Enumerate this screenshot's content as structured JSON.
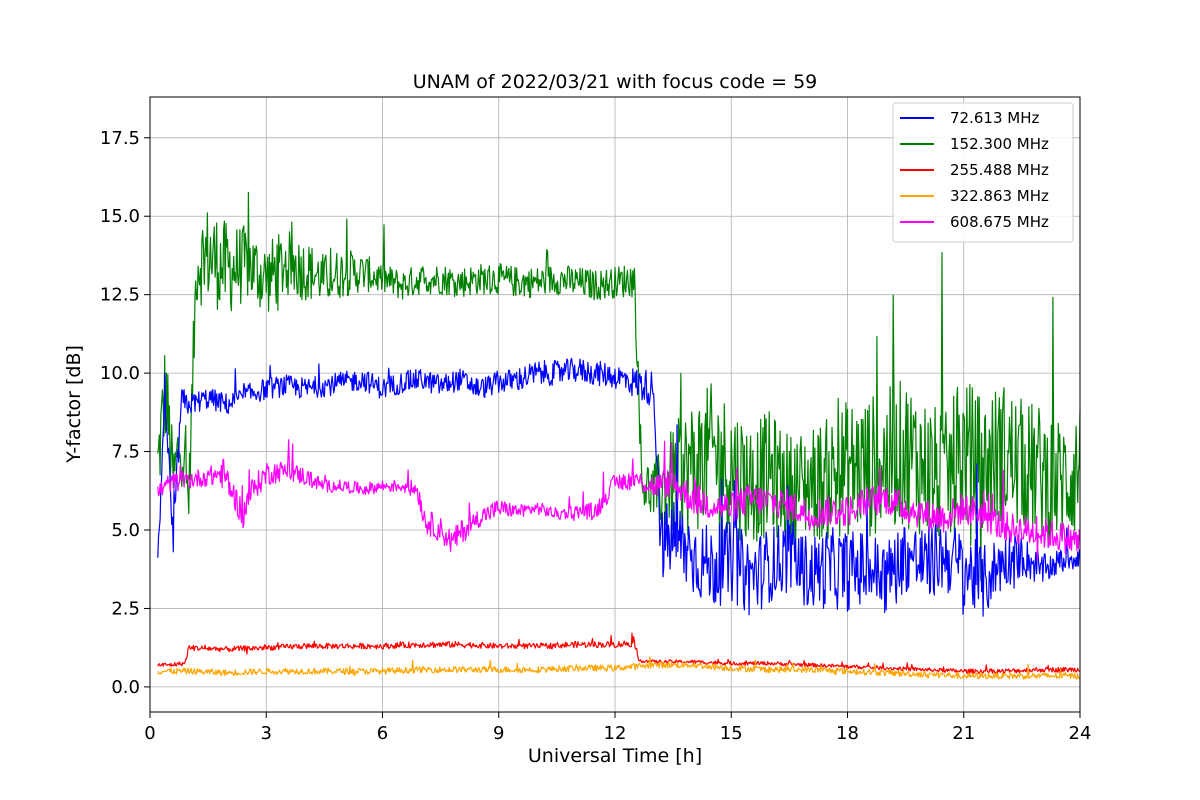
{
  "chart_data": {
    "type": "line",
    "title": "UNAM of 2022/03/21 with focus code = 59",
    "xlabel": "Universal Time [h]",
    "ylabel": "Y-factor [dB]",
    "xlim": [
      0,
      24
    ],
    "ylim": [
      -0.8,
      18.8
    ],
    "x_ticks": [
      0,
      3,
      6,
      9,
      12,
      15,
      18,
      21,
      24
    ],
    "x_tick_labels": [
      "0",
      "3",
      "6",
      "9",
      "12",
      "15",
      "18",
      "21",
      "24"
    ],
    "y_ticks": [
      0.0,
      2.5,
      5.0,
      7.5,
      10.0,
      12.5,
      15.0,
      17.5
    ],
    "y_tick_labels": [
      "0.0",
      "2.5",
      "5.0",
      "7.5",
      "10.0",
      "12.5",
      "15.0",
      "17.5"
    ],
    "grid": true,
    "legend_position": "top-right",
    "series": [
      {
        "name": " 72.613 MHz",
        "color": "#0000ff",
        "x": [
          0.2,
          0.4,
          0.6,
          0.8,
          1.0,
          1.5,
          2.0,
          2.5,
          3.0,
          3.5,
          4.0,
          4.5,
          5.0,
          5.5,
          6.0,
          6.5,
          7.0,
          7.5,
          8.0,
          8.5,
          9.0,
          9.5,
          10.0,
          10.5,
          11.0,
          11.5,
          12.0,
          12.5,
          13.0,
          13.2,
          13.5,
          14.0,
          14.5,
          15.0,
          15.5,
          16.0,
          16.5,
          17.0,
          17.5,
          18.0,
          18.5,
          19.0,
          19.5,
          20.0,
          20.5,
          21.0,
          21.5,
          22.0,
          22.5,
          23.0,
          23.5,
          24.0
        ],
        "y": [
          4.3,
          9.0,
          4.5,
          9.0,
          9.0,
          9.2,
          9.0,
          9.3,
          9.5,
          9.6,
          9.5,
          9.6,
          9.7,
          9.8,
          9.5,
          9.7,
          9.8,
          9.6,
          9.8,
          9.5,
          9.7,
          9.8,
          10.0,
          10.0,
          10.1,
          10.0,
          9.9,
          9.7,
          9.5,
          4.5,
          4.8,
          4.2,
          3.8,
          4.0,
          3.5,
          3.9,
          4.2,
          3.6,
          3.8,
          3.7,
          3.8,
          3.5,
          4.2,
          3.9,
          4.2,
          3.8,
          3.3,
          4.0,
          4.2,
          3.7,
          4.0,
          4.2
        ],
        "spread": [
          0.35,
          0.6,
          0.6,
          0.6,
          0.35,
          0.35,
          0.35,
          0.35,
          0.35,
          0.35,
          0.35,
          0.35,
          0.35,
          0.35,
          0.35,
          0.35,
          0.35,
          0.35,
          0.35,
          0.35,
          0.35,
          0.4,
          0.4,
          0.4,
          0.4,
          0.4,
          0.4,
          0.5,
          0.6,
          1.2,
          1.3,
          1.3,
          1.3,
          1.3,
          1.3,
          1.2,
          1.2,
          1.2,
          1.3,
          1.3,
          1.2,
          1.2,
          1.2,
          1.2,
          1.2,
          1.2,
          1.2,
          0.9,
          0.7,
          0.5,
          0.4,
          0.4
        ]
      },
      {
        "name": "152.300 MHz",
        "color": "#008000",
        "x": [
          0.2,
          0.4,
          0.6,
          0.8,
          1.0,
          1.2,
          1.5,
          2.0,
          2.5,
          3.0,
          3.5,
          4.0,
          4.5,
          5.0,
          5.5,
          6.0,
          6.5,
          7.0,
          7.5,
          8.0,
          8.5,
          9.0,
          9.5,
          10.0,
          10.5,
          11.0,
          11.5,
          12.0,
          12.5,
          12.7,
          13.0,
          13.5,
          14.0,
          14.5,
          15.0,
          15.5,
          16.0,
          16.5,
          17.0,
          17.5,
          18.0,
          18.5,
          19.0,
          19.5,
          20.0,
          20.5,
          21.0,
          21.5,
          22.0,
          22.5,
          23.0,
          23.5,
          24.0
        ],
        "y": [
          7.0,
          9.5,
          6.5,
          8.0,
          6.0,
          13.5,
          13.8,
          13.3,
          13.5,
          13.0,
          13.5,
          13.3,
          13.0,
          13.2,
          13.2,
          13.0,
          12.8,
          13.0,
          13.0,
          12.9,
          13.0,
          13.0,
          12.9,
          12.9,
          13.0,
          12.9,
          12.8,
          12.9,
          13.0,
          6.5,
          6.2,
          6.5,
          7.0,
          7.5,
          7.0,
          6.5,
          6.8,
          6.3,
          6.5,
          6.6,
          7.0,
          7.0,
          7.2,
          7.5,
          7.0,
          6.5,
          7.5,
          7.0,
          7.5,
          7.0,
          6.8,
          6.5,
          7.0
        ],
        "spread": [
          1.4,
          1.8,
          1.2,
          1.5,
          0.8,
          1.4,
          1.6,
          1.5,
          1.2,
          1.2,
          1.1,
          1.0,
          0.8,
          0.8,
          0.6,
          0.5,
          0.5,
          0.5,
          0.5,
          0.5,
          0.5,
          0.5,
          0.5,
          0.5,
          0.5,
          0.5,
          0.5,
          0.5,
          0.6,
          0.8,
          1.0,
          1.8,
          2.2,
          2.2,
          2.2,
          2.0,
          2.0,
          1.8,
          1.8,
          2.0,
          2.2,
          2.3,
          2.3,
          2.4,
          2.3,
          2.2,
          2.4,
          2.3,
          2.3,
          2.2,
          2.2,
          2.1,
          2.2
        ]
      },
      {
        "name": "255.488 MHz",
        "color": "#ff0000",
        "x": [
          0.2,
          0.5,
          0.9,
          1.0,
          2.0,
          3.0,
          4.0,
          5.0,
          6.0,
          7.0,
          8.0,
          9.0,
          10.0,
          11.0,
          12.0,
          12.5,
          12.6,
          13.0,
          14.0,
          15.0,
          16.0,
          17.0,
          18.0,
          19.0,
          20.0,
          21.0,
          22.0,
          23.0,
          24.0
        ],
        "y": [
          0.7,
          0.7,
          0.75,
          1.25,
          1.2,
          1.25,
          1.3,
          1.3,
          1.3,
          1.35,
          1.35,
          1.3,
          1.3,
          1.35,
          1.35,
          1.4,
          0.85,
          0.8,
          0.8,
          0.75,
          0.75,
          0.7,
          0.65,
          0.6,
          0.55,
          0.5,
          0.5,
          0.55,
          0.55
        ],
        "spread": [
          0.07,
          0.07,
          0.07,
          0.09,
          0.09,
          0.09,
          0.09,
          0.09,
          0.09,
          0.1,
          0.1,
          0.09,
          0.09,
          0.1,
          0.1,
          0.12,
          0.06,
          0.06,
          0.06,
          0.06,
          0.06,
          0.06,
          0.06,
          0.06,
          0.06,
          0.07,
          0.08,
          0.08,
          0.08
        ]
      },
      {
        "name": "322.863 MHz",
        "color": "#ffa500",
        "x": [
          0.2,
          1.0,
          2.0,
          3.0,
          4.0,
          5.0,
          6.0,
          7.0,
          8.0,
          9.0,
          10.0,
          11.0,
          12.0,
          13.0,
          14.0,
          15.0,
          16.0,
          17.0,
          18.0,
          19.0,
          20.0,
          21.0,
          22.0,
          23.0,
          24.0
        ],
        "y": [
          0.5,
          0.5,
          0.45,
          0.5,
          0.5,
          0.5,
          0.5,
          0.55,
          0.55,
          0.55,
          0.55,
          0.6,
          0.6,
          0.7,
          0.7,
          0.6,
          0.55,
          0.55,
          0.5,
          0.45,
          0.4,
          0.35,
          0.35,
          0.35,
          0.35
        ],
        "spread": [
          0.1,
          0.1,
          0.1,
          0.1,
          0.1,
          0.1,
          0.1,
          0.1,
          0.1,
          0.1,
          0.1,
          0.1,
          0.1,
          0.1,
          0.1,
          0.1,
          0.1,
          0.1,
          0.1,
          0.1,
          0.1,
          0.1,
          0.1,
          0.1,
          0.1
        ]
      },
      {
        "name": "608.675 MHz",
        "color": "#ff00ff",
        "x": [
          0.2,
          0.5,
          1.0,
          1.5,
          1.9,
          2.2,
          2.4,
          2.6,
          3.0,
          3.5,
          4.0,
          4.5,
          5.0,
          5.5,
          6.0,
          6.5,
          6.9,
          7.1,
          7.5,
          7.8,
          8.0,
          8.5,
          9.0,
          9.5,
          10.0,
          10.5,
          11.0,
          11.5,
          12.0,
          12.5,
          13.0,
          13.5,
          14.0,
          14.5,
          15.0,
          15.5,
          16.0,
          16.5,
          17.0,
          17.5,
          18.0,
          18.5,
          19.0,
          19.5,
          20.0,
          20.5,
          21.0,
          21.5,
          22.0,
          22.5,
          23.0,
          23.5,
          24.0
        ],
        "y": [
          6.2,
          6.5,
          6.6,
          6.7,
          6.8,
          6.0,
          5.5,
          6.2,
          6.8,
          6.9,
          6.7,
          6.4,
          6.4,
          6.3,
          6.4,
          6.4,
          6.3,
          5.3,
          5.0,
          4.6,
          4.9,
          5.4,
          5.7,
          5.6,
          5.7,
          5.5,
          5.6,
          5.6,
          6.5,
          6.6,
          6.4,
          6.5,
          6.0,
          5.8,
          5.7,
          6.0,
          5.9,
          5.8,
          5.5,
          5.6,
          5.6,
          5.9,
          6.0,
          5.7,
          5.5,
          5.4,
          5.7,
          5.5,
          5.1,
          5.0,
          4.9,
          4.8,
          4.6
        ],
        "spread": [
          0.3,
          0.3,
          0.3,
          0.3,
          0.5,
          0.4,
          0.5,
          0.4,
          0.4,
          0.3,
          0.3,
          0.2,
          0.2,
          0.2,
          0.2,
          0.2,
          0.3,
          0.4,
          0.4,
          0.4,
          0.4,
          0.3,
          0.3,
          0.2,
          0.2,
          0.2,
          0.2,
          0.3,
          0.3,
          0.3,
          0.4,
          0.5,
          0.5,
          0.5,
          0.5,
          0.5,
          0.5,
          0.5,
          0.5,
          0.5,
          0.5,
          0.5,
          0.5,
          0.5,
          0.5,
          0.5,
          0.5,
          0.5,
          0.5,
          0.5,
          0.5,
          0.5,
          0.5
        ]
      }
    ]
  }
}
